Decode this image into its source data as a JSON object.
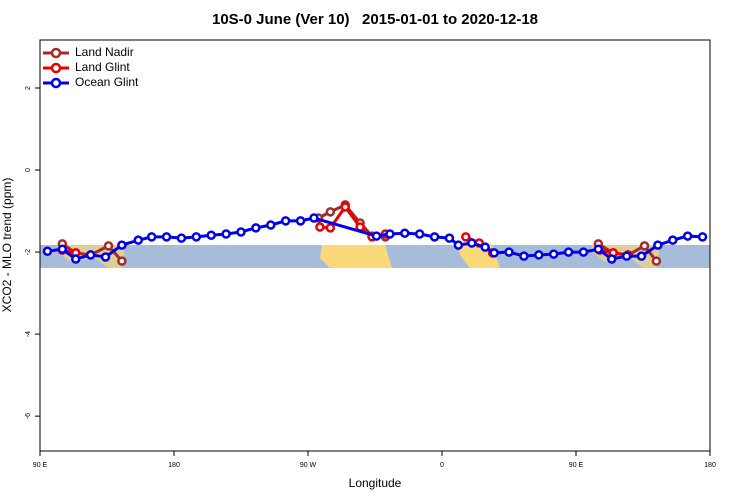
{
  "chart_data": {
    "type": "line",
    "title": "10S-0 June (Ver 10)   2015-01-01 to 2020-12-18",
    "x_label": "Longitude",
    "y_label": "XCO2 - MLO trend (ppm)",
    "xlim": [
      90,
      540
    ],
    "ylim": [
      -6.85,
      3.17
    ],
    "xticks": [
      {
        "value": 90,
        "label": "90 E"
      },
      {
        "value": 180,
        "label": "180"
      },
      {
        "value": 270,
        "label": "90 W"
      },
      {
        "value": 360,
        "label": "0"
      },
      {
        "value": 450,
        "label": "90 E"
      },
      {
        "value": 540,
        "label": "180"
      }
    ],
    "yticks": [
      -6,
      -4,
      -2,
      0,
      2
    ],
    "legend": "top-left",
    "series": [
      {
        "name": "Land Nadir",
        "color": "#a52a2a",
        "x": [
          105,
          114,
          124,
          136,
          145,
          200,
          277,
          285,
          295,
          305,
          313,
          322,
          400,
          465,
          475,
          485,
          496,
          504
        ],
        "values": [
          -1.8,
          -2.02,
          -2.07,
          -1.85,
          -2.22,
          null,
          -1.17,
          -1.02,
          -0.85,
          -1.29,
          -1.61,
          -1.63,
          null,
          -1.8,
          -2.02,
          -2.07,
          -1.85,
          -2.22
        ]
      },
      {
        "name": "Land Glint",
        "color": "#ee0000",
        "x": [
          105,
          114,
          200,
          278,
          285,
          295,
          305,
          313,
          322,
          350,
          376,
          385,
          394,
          430,
          466,
          475,
          485
        ],
        "values": [
          -1.95,
          -2.02,
          null,
          -1.39,
          -1.41,
          -0.9,
          -1.39,
          -1.63,
          -1.56,
          null,
          -1.63,
          -1.78,
          -2.02,
          null,
          -1.95,
          -2.02,
          -2.07
        ]
      },
      {
        "name": "Ocean Glint",
        "color": "#0000ee",
        "x": [
          95,
          105,
          114,
          124,
          134,
          145,
          156,
          165,
          175,
          185,
          195,
          205,
          215,
          225,
          235,
          245,
          255,
          265,
          274,
          316,
          325,
          335,
          345,
          355,
          365,
          371,
          380,
          389,
          395,
          405,
          415,
          425,
          435,
          445,
          455,
          465,
          474,
          484,
          494,
          505,
          515,
          525,
          535
        ],
        "values": [
          -1.98,
          -1.93,
          -2.17,
          -2.07,
          -2.12,
          -1.83,
          -1.71,
          -1.63,
          -1.63,
          -1.66,
          -1.63,
          -1.59,
          -1.56,
          -1.51,
          -1.41,
          -1.34,
          -1.24,
          -1.24,
          -1.17,
          -1.61,
          -1.56,
          -1.54,
          -1.56,
          -1.63,
          -1.66,
          -1.83,
          -1.78,
          -1.88,
          -2.02,
          -2.0,
          -2.1,
          -2.07,
          -2.05,
          -2.0,
          -2.0,
          -1.93,
          -2.17,
          -2.1,
          -2.1,
          -1.83,
          -1.71,
          -1.61,
          -1.63
        ]
      }
    ]
  }
}
